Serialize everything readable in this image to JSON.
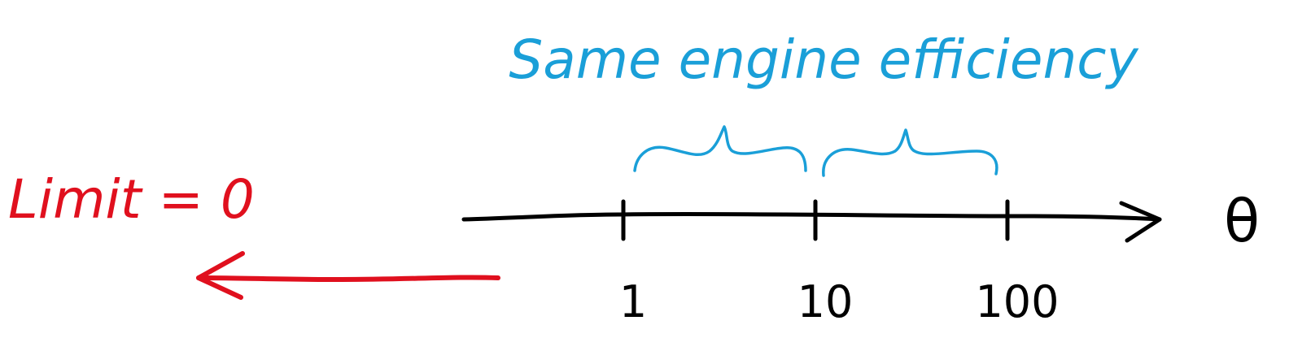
{
  "title": "Same engine efficiency",
  "limit_label": "Limit = 0",
  "axis_label": "θ",
  "ticks": [
    {
      "label": "1",
      "value": 1
    },
    {
      "label": "10",
      "value": 10
    },
    {
      "label": "100",
      "value": 100
    }
  ],
  "axis_scale": "log",
  "colors": {
    "axis": "#000000",
    "annotation": "#1a9fd8",
    "limit": "#e0101e"
  }
}
